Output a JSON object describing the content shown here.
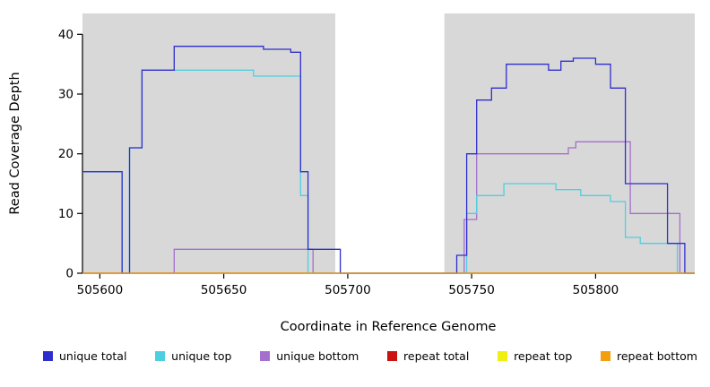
{
  "chart_data": {
    "type": "line",
    "step": true,
    "title": "",
    "xlabel": "Coordinate in Reference Genome",
    "ylabel": "Read Coverage Depth",
    "xlim": [
      505593,
      505840
    ],
    "ylim": [
      0,
      43.5
    ],
    "x_ticks": [
      505600,
      505650,
      505700,
      505750,
      505800
    ],
    "y_ticks": [
      0,
      10,
      20,
      30,
      40
    ],
    "grid": false,
    "legend_position": "bottom",
    "shaded_color": "#d8d8d8",
    "shaded_regions": [
      [
        505593,
        505695
      ],
      [
        505739,
        505840
      ]
    ],
    "draw_order": [
      "repeat total",
      "repeat top",
      "unique bottom",
      "unique top",
      "unique total",
      "repeat bottom"
    ],
    "series": [
      {
        "name": "unique total",
        "color": "#2e2ecf",
        "segments": [
          [
            505593,
            505609,
            17
          ],
          [
            505609,
            505612,
            0
          ],
          [
            505612,
            505617,
            21
          ],
          [
            505617,
            505630,
            34
          ],
          [
            505630,
            505666,
            38
          ],
          [
            505666,
            505677,
            37.5
          ],
          [
            505677,
            505681,
            37
          ],
          [
            505681,
            505684,
            17
          ],
          [
            505684,
            505697,
            4
          ],
          [
            505697,
            505744,
            0
          ],
          [
            505744,
            505748,
            3
          ],
          [
            505748,
            505752,
            20
          ],
          [
            505752,
            505758,
            29
          ],
          [
            505758,
            505764,
            31
          ],
          [
            505764,
            505781,
            35
          ],
          [
            505781,
            505786,
            34
          ],
          [
            505786,
            505791,
            35.5
          ],
          [
            505791,
            505800,
            36
          ],
          [
            505800,
            505806,
            35
          ],
          [
            505806,
            505812,
            31
          ],
          [
            505812,
            505829,
            15
          ],
          [
            505829,
            505836,
            5
          ],
          [
            505836,
            505840,
            0
          ]
        ]
      },
      {
        "name": "unique top",
        "color": "#4ecfe0",
        "segments": [
          [
            505593,
            505609,
            17
          ],
          [
            505609,
            505612,
            0
          ],
          [
            505612,
            505617,
            21
          ],
          [
            505617,
            505662,
            34
          ],
          [
            505662,
            505681,
            33
          ],
          [
            505681,
            505684,
            13
          ],
          [
            505684,
            505748,
            0
          ],
          [
            505748,
            505752,
            10
          ],
          [
            505752,
            505763,
            13
          ],
          [
            505763,
            505784,
            15
          ],
          [
            505784,
            505794,
            14
          ],
          [
            505794,
            505806,
            13
          ],
          [
            505806,
            505812,
            12
          ],
          [
            505812,
            505818,
            6
          ],
          [
            505818,
            505833,
            5
          ],
          [
            505833,
            505840,
            0
          ]
        ]
      },
      {
        "name": "unique bottom",
        "color": "#a56fcd",
        "segments": [
          [
            505593,
            505630,
            0
          ],
          [
            505630,
            505686,
            4
          ],
          [
            505686,
            505747,
            0
          ],
          [
            505747,
            505752,
            9
          ],
          [
            505752,
            505789,
            20
          ],
          [
            505789,
            505792,
            21
          ],
          [
            505792,
            505814,
            22
          ],
          [
            505814,
            505834,
            10
          ],
          [
            505834,
            505840,
            0
          ]
        ]
      },
      {
        "name": "repeat total",
        "color": "#cc1111",
        "segments": [
          [
            505593,
            505840,
            0
          ]
        ]
      },
      {
        "name": "repeat top",
        "color": "#efef10",
        "segments": [
          [
            505593,
            505840,
            0
          ]
        ]
      },
      {
        "name": "repeat bottom",
        "color": "#f29e0f",
        "segments": [
          [
            505593,
            505840,
            0
          ]
        ]
      }
    ]
  }
}
